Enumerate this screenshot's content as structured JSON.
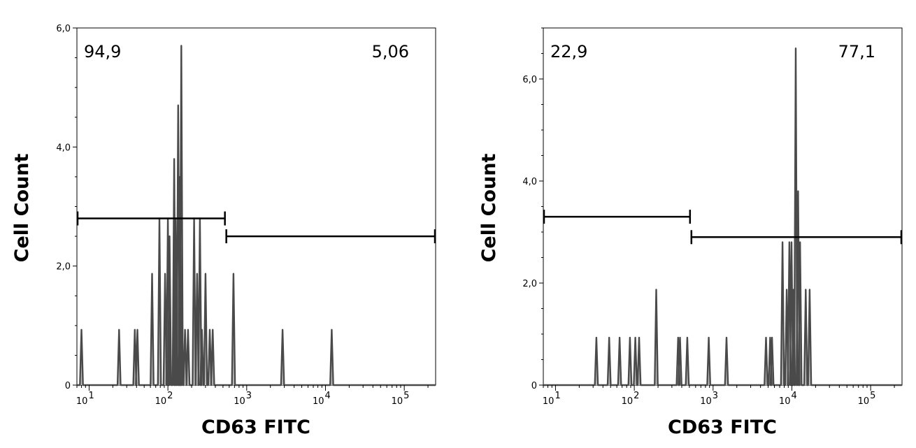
{
  "chart_data": [
    {
      "type": "area",
      "xlabel": "CD63 FITC",
      "ylabel": "Cell Count",
      "xscale": "log",
      "xlim": [
        7,
        250000
      ],
      "ylim": [
        0,
        6.0
      ],
      "x_ticks": [
        {
          "value": 10,
          "base": "10",
          "exp": "1"
        },
        {
          "value": 100,
          "base": "10",
          "exp": "2"
        },
        {
          "value": 1000,
          "base": "10",
          "exp": "3"
        },
        {
          "value": 10000,
          "base": "10",
          "exp": "4"
        },
        {
          "value": 100000,
          "base": "10",
          "exp": "5"
        }
      ],
      "y_ticks": [
        {
          "value": 0,
          "label": "0"
        },
        {
          "value": 2.0,
          "label": "2,0"
        },
        {
          "value": 4.0,
          "label": "4,0"
        },
        {
          "value": 6.0,
          "label": "6,0"
        }
      ],
      "gates": [
        {
          "from": 7,
          "to": 540,
          "y": 2.8,
          "label": "94,9",
          "label_position": "top-left"
        },
        {
          "from": 540,
          "to": 250000,
          "y": 2.5,
          "label": "5,06",
          "label_position": "top-right"
        }
      ],
      "fill_color": "#c0c0c0",
      "line_color": "#4a4a4a",
      "peaks": [
        [
          8,
          0.93
        ],
        [
          24,
          0.93
        ],
        [
          38,
          0.93
        ],
        [
          41,
          0.93
        ],
        [
          63,
          1.87
        ],
        [
          78,
          2.8
        ],
        [
          92,
          1.87
        ],
        [
          100,
          2.8
        ],
        [
          105,
          2.5
        ],
        [
          120,
          3.8
        ],
        [
          125,
          2.8
        ],
        [
          135,
          4.7
        ],
        [
          142,
          3.5
        ],
        [
          148,
          5.7
        ],
        [
          165,
          0.93
        ],
        [
          180,
          0.93
        ],
        [
          215,
          2.8
        ],
        [
          235,
          1.87
        ],
        [
          255,
          2.8
        ],
        [
          270,
          0.93
        ],
        [
          300,
          1.87
        ],
        [
          340,
          0.93
        ],
        [
          370,
          0.93
        ],
        [
          680,
          1.87
        ],
        [
          2850,
          0.93
        ],
        [
          12000,
          0.93
        ]
      ]
    },
    {
      "type": "area",
      "xlabel": "CD63 FITC",
      "ylabel": "Cell Count",
      "xscale": "log",
      "xlim": [
        7,
        250000
      ],
      "ylim": [
        0,
        7.0
      ],
      "x_ticks": [
        {
          "value": 10,
          "base": "10",
          "exp": "1"
        },
        {
          "value": 100,
          "base": "10",
          "exp": "2"
        },
        {
          "value": 1000,
          "base": "10",
          "exp": "3"
        },
        {
          "value": 10000,
          "base": "10",
          "exp": "4"
        },
        {
          "value": 100000,
          "base": "10",
          "exp": "5"
        }
      ],
      "y_ticks": [
        {
          "value": 0,
          "label": "0"
        },
        {
          "value": 2.0,
          "label": "2,0"
        },
        {
          "value": 4.0,
          "label": "4,0"
        },
        {
          "value": 6.0,
          "label": "6,0"
        }
      ],
      "gates": [
        {
          "from": 7,
          "to": 520,
          "y": 3.3,
          "label": "22,9",
          "label_position": "top-left"
        },
        {
          "from": 520,
          "to": 250000,
          "y": 2.9,
          "label": "77,1",
          "label_position": "top-right"
        }
      ],
      "fill_color": "#c0c0c0",
      "line_color": "#4a4a4a",
      "peaks": [
        [
          33,
          0.93
        ],
        [
          48,
          0.93
        ],
        [
          65,
          0.93
        ],
        [
          88,
          0.93
        ],
        [
          103,
          0.93
        ],
        [
          115,
          0.93
        ],
        [
          190,
          1.87
        ],
        [
          360,
          0.93
        ],
        [
          380,
          0.93
        ],
        [
          470,
          0.93
        ],
        [
          880,
          0.93
        ],
        [
          1480,
          0.93
        ],
        [
          4700,
          0.93
        ],
        [
          5300,
          0.93
        ],
        [
          5600,
          0.93
        ],
        [
          7600,
          2.8
        ],
        [
          8600,
          1.87
        ],
        [
          9300,
          2.8
        ],
        [
          9900,
          2.8
        ],
        [
          10500,
          1.87
        ],
        [
          11200,
          6.6
        ],
        [
          12000,
          3.8
        ],
        [
          12700,
          2.8
        ],
        [
          15000,
          1.87
        ],
        [
          16800,
          1.87
        ]
      ]
    }
  ]
}
